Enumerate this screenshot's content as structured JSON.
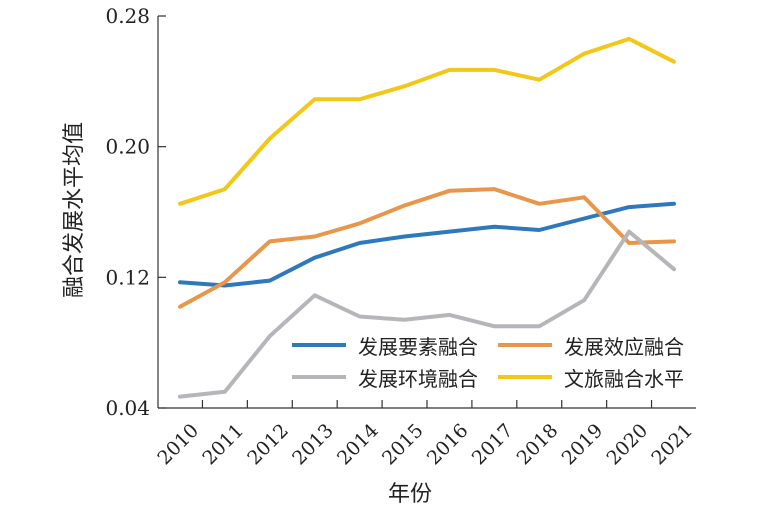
{
  "chart_data": {
    "type": "line",
    "x": [
      "2010",
      "2011",
      "2012",
      "2013",
      "2014",
      "2015",
      "2016",
      "2017",
      "2018",
      "2019",
      "2020",
      "2021"
    ],
    "ylabel": "融合发展水平均值",
    "xlabel": "年份",
    "ylim": [
      0.04,
      0.28
    ],
    "yticks": [
      "0.04",
      "0.12",
      "0.20",
      "0.28"
    ],
    "ytick_values": [
      0.04,
      0.12,
      0.2,
      0.28
    ],
    "grid": false,
    "legend_position": "bottom-right",
    "series": [
      {
        "name": "发展要素融合",
        "color": "#2E78BE",
        "values": [
          0.117,
          0.115,
          0.118,
          0.132,
          0.141,
          0.145,
          0.148,
          0.151,
          0.149,
          0.156,
          0.163,
          0.165
        ]
      },
      {
        "name": "发展效应融合",
        "color": "#E8964B",
        "values": [
          0.102,
          0.117,
          0.142,
          0.145,
          0.153,
          0.164,
          0.173,
          0.174,
          0.165,
          0.169,
          0.141,
          0.142
        ]
      },
      {
        "name": "发展环境融合",
        "color": "#B4B6BA",
        "values": [
          0.047,
          0.05,
          0.084,
          0.109,
          0.096,
          0.094,
          0.097,
          0.09,
          0.09,
          0.106,
          0.148,
          0.125
        ]
      },
      {
        "name": "文旅融合水平",
        "color": "#F2C718",
        "values": [
          0.165,
          0.174,
          0.205,
          0.229,
          0.229,
          0.237,
          0.247,
          0.247,
          0.241,
          0.257,
          0.266,
          0.252
        ]
      }
    ]
  }
}
